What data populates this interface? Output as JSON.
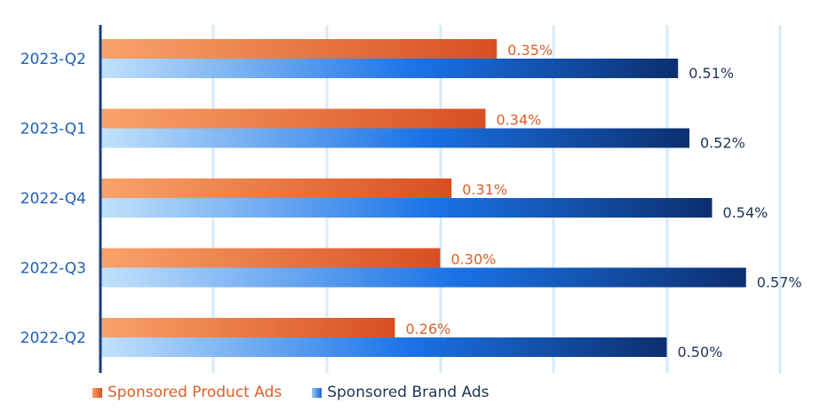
{
  "chart_data": {
    "type": "bar",
    "orientation": "horizontal",
    "categories": [
      "2023-Q2",
      "2023-Q1",
      "2022-Q4",
      "2022-Q3",
      "2022-Q2"
    ],
    "series": [
      {
        "name": "Sponsored Product Ads",
        "values": [
          0.35,
          0.34,
          0.31,
          0.3,
          0.26
        ],
        "labels": [
          "0.35%",
          "0.34%",
          "0.31%",
          "0.30%",
          "0.26%"
        ]
      },
      {
        "name": "Sponsored Brand Ads",
        "values": [
          0.51,
          0.52,
          0.54,
          0.57,
          0.5
        ],
        "labels": [
          "0.51%",
          "0.52%",
          "0.54%",
          "0.57%",
          "0.50%"
        ]
      }
    ],
    "xlim": [
      0,
      0.6
    ],
    "grid": true,
    "legend_position": "bottom-left",
    "colors": {
      "sponsored_product_start": "#f9a36a",
      "sponsored_product_end": "#d84f22",
      "sponsored_brand_start": "#c2e2fb",
      "sponsored_brand_mid": "#1a72e6",
      "sponsored_brand_end": "#0c2f6e",
      "axis": "#1a3f7a",
      "grid": "#d6ebfb"
    }
  },
  "legend": {
    "product": "Sponsored Product Ads",
    "brand": "Sponsored Brand Ads"
  }
}
